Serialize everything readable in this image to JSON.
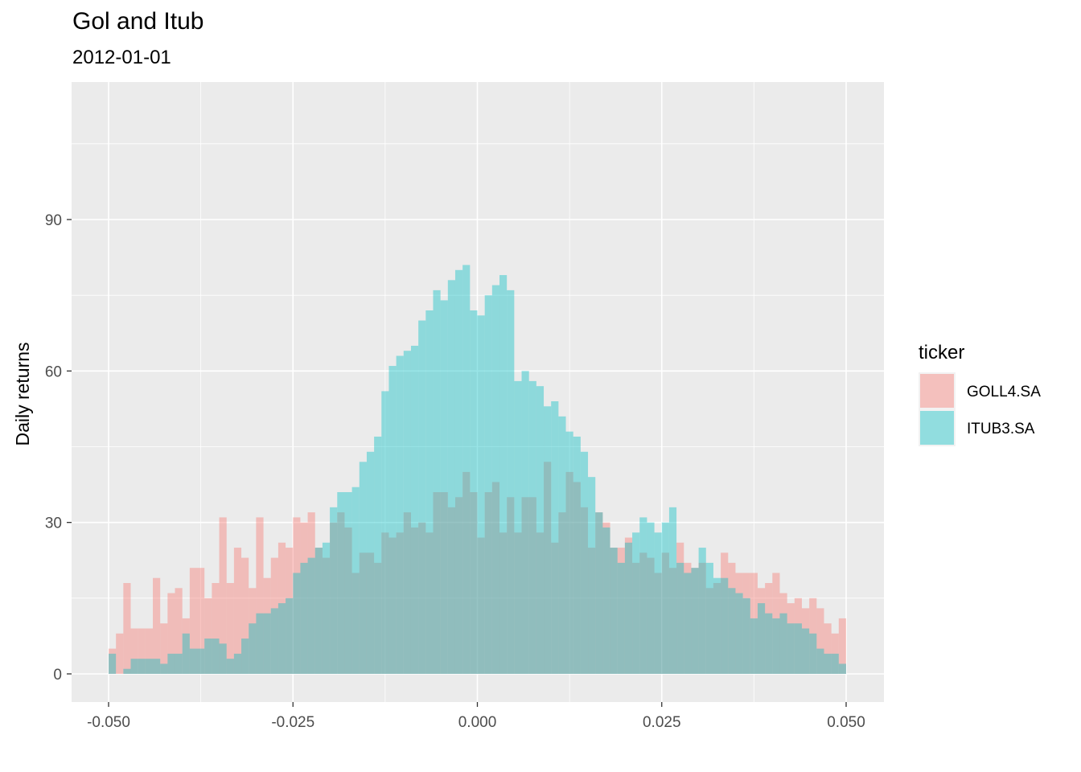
{
  "chart_data": {
    "type": "histogram",
    "title": "Gol and Itub",
    "subtitle": "2012-01-01",
    "xlabel": "",
    "ylabel": "Daily returns",
    "xlim": [
      -0.05,
      0.05
    ],
    "ylim": [
      0,
      111
    ],
    "x_ticks": [
      -0.05,
      -0.025,
      0.0,
      0.025,
      0.05
    ],
    "x_tick_labels": [
      "-0.050",
      "-0.025",
      "0.000",
      "0.025",
      "0.050"
    ],
    "y_ticks": [
      0,
      30,
      60,
      90
    ],
    "y_tick_labels": [
      "0",
      "30",
      "60",
      "90"
    ],
    "grid": true,
    "bins": 100,
    "bin_width": 0.001,
    "x_start": -0.05,
    "legend": {
      "title": "ticker",
      "position": "right"
    },
    "series": [
      {
        "name": "GOLL4.SA",
        "color": "#F8766D",
        "values": [
          5,
          8,
          18,
          9,
          9,
          9,
          19,
          10,
          16,
          17,
          11,
          21,
          21,
          15,
          18,
          31,
          18,
          25,
          23,
          17,
          31,
          19,
          23,
          26,
          25,
          31,
          30,
          32,
          25,
          23,
          30,
          32,
          29,
          20,
          24,
          24,
          22,
          28,
          27,
          28,
          32,
          29,
          30,
          28,
          36,
          36,
          33,
          35,
          40,
          36,
          27,
          36,
          38,
          28,
          35,
          28,
          35,
          35,
          28,
          42,
          26,
          32,
          40,
          38,
          33,
          25,
          32,
          30,
          25,
          25,
          27,
          22,
          24,
          23,
          20,
          24,
          21,
          26,
          22,
          21,
          22,
          17,
          18,
          24,
          22,
          20,
          20,
          20,
          17,
          18,
          20,
          16,
          14,
          15,
          13,
          15,
          13,
          10,
          8,
          11
        ]
      },
      {
        "name": "ITUB3.SA",
        "color": "#00BFC4",
        "values": [
          4,
          0,
          1,
          3,
          3,
          3,
          3,
          2,
          4,
          4,
          8,
          5,
          5,
          7,
          7,
          6,
          3,
          4,
          7,
          10,
          12,
          12,
          13,
          14,
          15,
          20,
          22,
          23,
          25,
          26,
          33,
          36,
          36,
          37,
          42,
          44,
          47,
          56,
          61,
          63,
          64,
          65,
          70,
          72,
          76,
          74,
          78,
          80,
          81,
          72,
          71,
          75,
          77,
          79,
          76,
          58,
          60,
          58,
          57,
          53,
          54,
          51,
          48,
          47,
          44,
          39,
          32,
          29,
          25,
          22,
          26,
          28,
          31,
          30,
          28,
          30,
          33,
          22,
          20,
          21,
          25,
          22,
          19,
          19,
          17,
          16,
          15,
          11,
          14,
          12,
          11,
          12,
          10,
          10,
          9,
          8,
          5,
          4,
          4,
          2
        ]
      }
    ]
  }
}
